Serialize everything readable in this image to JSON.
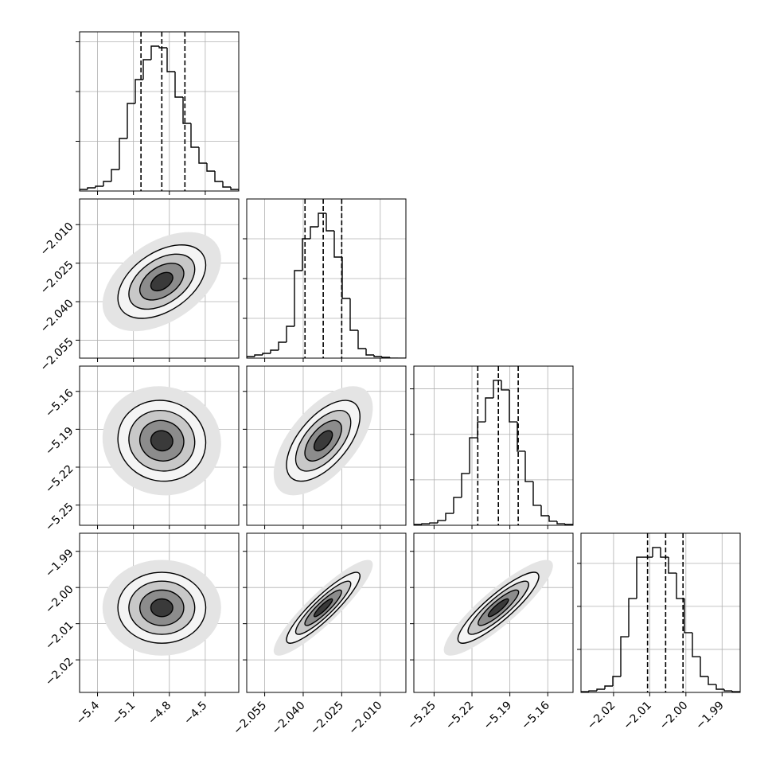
{
  "chart_data": {
    "type": "corner",
    "color": "#000000",
    "grid": true,
    "parameters": [
      {
        "xlim": [
          -5.55,
          -4.22
        ],
        "xticks": [
          {
            "value": -5.4,
            "label": "−5.4"
          },
          {
            "value": -5.1,
            "label": "−5.1"
          },
          {
            "value": -4.8,
            "label": "−4.8"
          },
          {
            "value": -4.5,
            "label": "−4.5"
          }
        ],
        "quantiles": [
          -5.037,
          -4.863,
          -4.67
        ],
        "bins": [
          -5.55,
          -5.4835,
          -5.417,
          -5.3505,
          -5.284,
          -5.2175,
          -5.151,
          -5.0845,
          -5.018,
          -4.9515,
          -4.885,
          -4.8185,
          -4.752,
          -4.6855,
          -4.619,
          -4.5525,
          -4.486,
          -4.4195,
          -4.353,
          -4.2865,
          -4.22
        ],
        "counts": [
          16,
          32,
          48,
          96,
          216,
          528,
          880,
          1120,
          1320,
          1456,
          1440,
          1200,
          944,
          680,
          440,
          280,
          200,
          96,
          40,
          16
        ],
        "ylim": [
          0,
          1600
        ],
        "yticks": [
          500,
          1000,
          1500
        ]
      },
      {
        "xlim": [
          -2.062,
          -2.0
        ],
        "xticks": [
          {
            "value": -2.055,
            "label": "−2.055"
          },
          {
            "value": -2.04,
            "label": "−2.040"
          },
          {
            "value": -2.025,
            "label": "−2.025"
          },
          {
            "value": -2.01,
            "label": "−2.010"
          }
        ],
        "quantiles": [
          -2.0393,
          -2.0322,
          -2.025
        ],
        "bins": [
          -2.062,
          -2.0589,
          -2.0558,
          -2.0527,
          -2.0496,
          -2.0465,
          -2.0434,
          -2.0403,
          -2.0372,
          -2.0341,
          -2.031,
          -2.0279,
          -2.0248,
          -2.0217,
          -2.0186,
          -2.0155,
          -2.0124,
          -2.0093,
          -2.0062,
          -2.0031,
          -2.0
        ],
        "counts": [
          20,
          40,
          60,
          100,
          200,
          400,
          1100,
          1500,
          1650,
          1820,
          1600,
          1270,
          750,
          350,
          120,
          40,
          20,
          10,
          0,
          0
        ],
        "ylim": [
          0,
          2000
        ],
        "yticks": [
          500,
          1000,
          1500
        ]
      },
      {
        "xlim": [
          -5.266,
          -5.14
        ],
        "xticks": [
          {
            "value": -5.25,
            "label": "−5.25"
          },
          {
            "value": -5.22,
            "label": "−5.22"
          },
          {
            "value": -5.19,
            "label": "−5.19"
          },
          {
            "value": -5.16,
            "label": "−5.16"
          }
        ],
        "quantiles": [
          -5.2154,
          -5.1991,
          -5.1834
        ],
        "bins": [
          -5.266,
          -5.2597,
          -5.2534,
          -5.2471,
          -5.2408,
          -5.2345,
          -5.2282,
          -5.2219,
          -5.2156,
          -5.2093,
          -5.203,
          -5.1967,
          -5.1904,
          -5.1841,
          -5.1778,
          -5.1715,
          -5.1652,
          -5.1589,
          -5.1526,
          -5.1463,
          -5.14
        ],
        "counts": [
          9,
          17,
          26,
          52,
          131,
          306,
          569,
          962,
          1137,
          1400,
          1593,
          1488,
          1137,
          814,
          481,
          219,
          105,
          44,
          17,
          9
        ],
        "ylim": [
          0,
          1750
        ],
        "yticks": [
          500,
          1000,
          1500
        ]
      },
      {
        "xlim": [
          -2.029,
          -1.985
        ],
        "xticks": [
          {
            "value": -2.02,
            "label": "−2.02"
          },
          {
            "value": -2.01,
            "label": "−2.01"
          },
          {
            "value": -2.0,
            "label": "−2.00"
          },
          {
            "value": -1.99,
            "label": "−1.99"
          }
        ],
        "quantiles": [
          -2.0106,
          -2.0056,
          -2.0008
        ],
        "bins": [
          -2.029,
          -2.0268,
          -2.0246,
          -2.0224,
          -2.0202,
          -2.018,
          -2.0158,
          -2.0136,
          -2.0114,
          -2.0092,
          -2.007,
          -2.0048,
          -2.0026,
          -2.0004,
          -1.9982,
          -1.996,
          -1.9938,
          -1.9916,
          -1.9894,
          -1.9872,
          -1.985
        ],
        "counts": [
          9,
          18,
          37,
          74,
          185,
          647,
          1091,
          1572,
          1572,
          1684,
          1572,
          1387,
          1091,
          694,
          416,
          185,
          92,
          37,
          18,
          9
        ],
        "ylim": [
          0,
          1850
        ],
        "yticks": [
          500,
          1000,
          1500
        ]
      }
    ]
  }
}
